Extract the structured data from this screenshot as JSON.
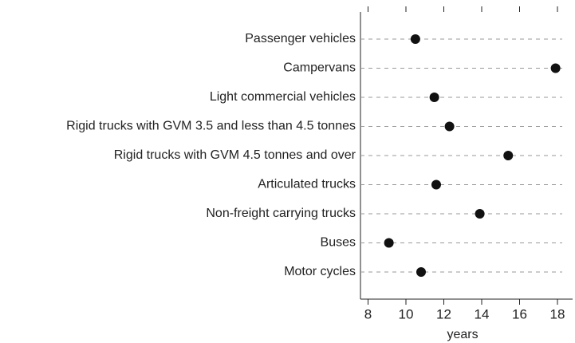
{
  "chart_data": {
    "type": "dot",
    "categories": [
      "Passenger vehicles",
      "Campervans",
      "Light commercial vehicles",
      "Rigid trucks with GVM 3.5 and less than 4.5 tonnes",
      "Rigid trucks with GVM 4.5 tonnes and over",
      "Articulated trucks",
      "Non-freight carrying trucks",
      "Buses",
      "Motor cycles"
    ],
    "values": [
      10.5,
      17.9,
      11.5,
      12.3,
      15.4,
      11.6,
      13.9,
      9.1,
      10.8
    ],
    "color": "#111111",
    "xlabel": "years",
    "xlim": [
      7.6,
      18.8
    ],
    "xticks": [
      8,
      10,
      12,
      14,
      16,
      18
    ],
    "grid": true
  }
}
